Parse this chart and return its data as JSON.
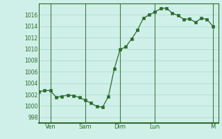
{
  "x_values": [
    0,
    1,
    2,
    3,
    4,
    5,
    6,
    7,
    8,
    9,
    10,
    11,
    12,
    13,
    14,
    15,
    16,
    17,
    18,
    19,
    20,
    21,
    22,
    23,
    24,
    25,
    26,
    27,
    28,
    29,
    30
  ],
  "y_values": [
    1002.5,
    1002.7,
    1002.7,
    1001.5,
    1001.7,
    1001.9,
    1001.8,
    1001.5,
    1001.0,
    1000.5,
    999.9,
    999.8,
    1001.7,
    1006.5,
    1009.9,
    1010.4,
    1011.8,
    1013.3,
    1015.4,
    1016.0,
    1016.5,
    1017.1,
    1017.2,
    1016.3,
    1015.9,
    1015.2,
    1015.3,
    1014.7,
    1015.4,
    1015.2,
    1014.0
  ],
  "day_labels": [
    "Ven",
    "Sam",
    "Dim",
    "Lun",
    "M"
  ],
  "day_positions": [
    2,
    8,
    14,
    20,
    30
  ],
  "ylim": [
    997,
    1018
  ],
  "yticks": [
    998,
    1000,
    1002,
    1004,
    1006,
    1008,
    1010,
    1012,
    1014,
    1016
  ],
  "line_color": "#2d6a2d",
  "marker_color": "#2d6a2d",
  "bg_color": "#cff0e8",
  "grid_color": "#a8d8cc",
  "tick_label_color": "#2d6a2d",
  "axis_color": "#2d6a2d",
  "xlim": [
    0,
    31
  ]
}
